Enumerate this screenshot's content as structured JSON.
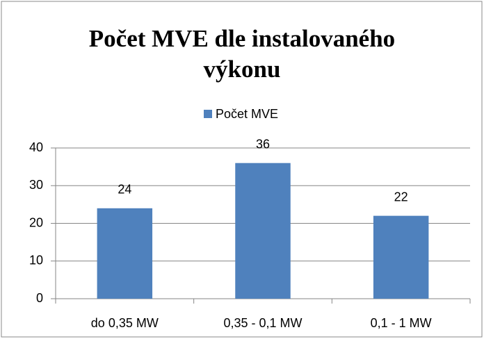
{
  "chart_data": {
    "type": "bar",
    "title": "Počet MVE dle instalovaného výkonu",
    "categories": [
      "do 0,35 MW",
      "0,35 - 0,1 MW",
      "0,1 - 1 MW"
    ],
    "series": [
      {
        "name": "Počet MVE",
        "color": "#4f81bd",
        "values": [
          24,
          36,
          22
        ]
      }
    ],
    "ylim": [
      0,
      40
    ],
    "yticks": [
      0,
      10,
      20,
      30,
      40
    ],
    "grid": true,
    "legend": "top"
  }
}
